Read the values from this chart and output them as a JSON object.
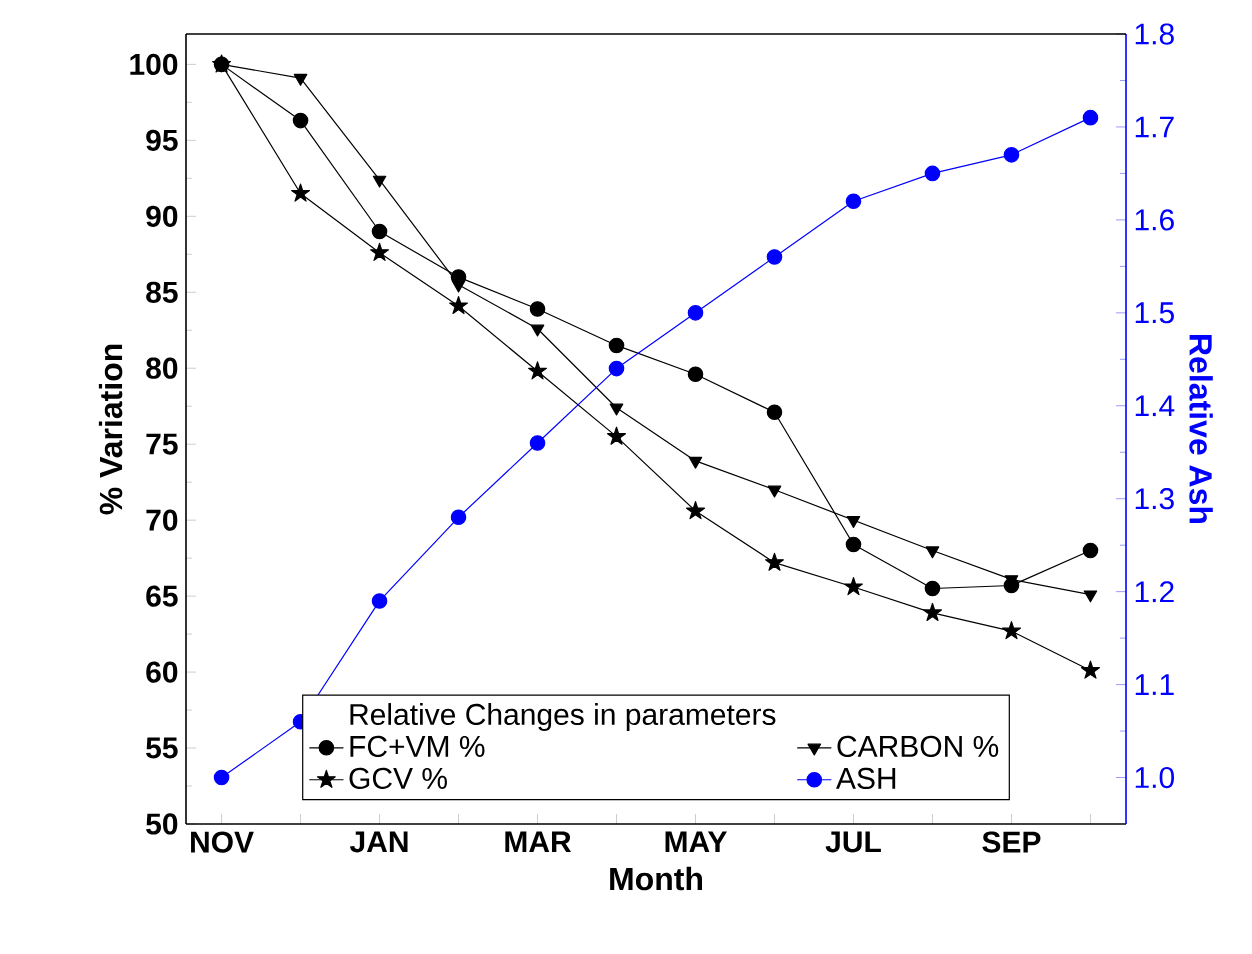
{
  "chart_data": {
    "type": "line",
    "categories": [
      "NOV",
      null,
      "JAN",
      null,
      "MAR",
      null,
      "MAY",
      null,
      "JUL",
      null,
      "SEP",
      null
    ],
    "series": [
      {
        "name": "FC+VM %",
        "color": "#000000",
        "marker": "circle",
        "values": [
          100,
          96.3,
          89,
          86,
          83.9,
          81.5,
          79.6,
          77.1,
          68.4,
          65.5,
          65.7,
          68
        ]
      },
      {
        "name": "CARBON %",
        "color": "#000000",
        "marker": "triangle",
        "values": [
          100,
          99.1,
          92.4,
          85.5,
          82.6,
          77.4,
          73.9,
          72,
          70,
          68,
          66.1,
          65.1
        ]
      },
      {
        "name": "GCV %",
        "color": "#000000",
        "marker": "star",
        "values": [
          100,
          91.5,
          87.6,
          84.1,
          79.8,
          75.5,
          70.6,
          67.2,
          65.6,
          63.9,
          62.7,
          60.1
        ]
      },
      {
        "name": "ASH",
        "color": "#0000ff",
        "marker": "circle",
        "axis": "y2",
        "values": [
          1.0,
          1.06,
          1.19,
          1.28,
          1.36,
          1.44,
          1.5,
          1.56,
          1.62,
          1.65,
          1.67,
          1.71
        ]
      }
    ],
    "xlabel": "Month",
    "ylabel": "% Variation",
    "y2label": "Relative Ash",
    "legend_title": "Relative Changes in parameters",
    "legend": "bottom",
    "ylim": [
      50,
      102
    ],
    "yticks": [
      50,
      55,
      60,
      65,
      70,
      75,
      80,
      85,
      90,
      95,
      100
    ],
    "y2lim": [
      0.95,
      1.8
    ],
    "y2ticks": [
      {
        "value": 1.0,
        "label": "1.0"
      },
      1.1,
      1.2,
      1.3,
      1.4,
      1.5,
      1.6,
      1.7,
      1.8
    ],
    "grid": false,
    "line_style": "solid"
  }
}
